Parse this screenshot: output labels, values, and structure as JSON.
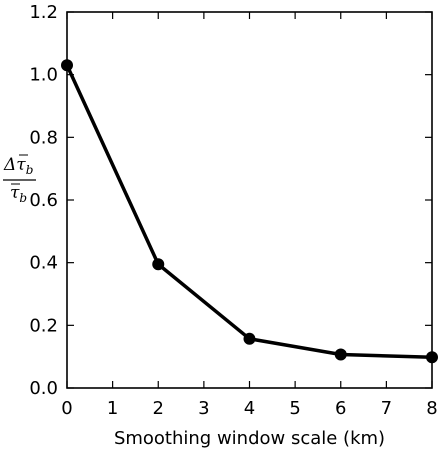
{
  "chart_data": {
    "type": "line",
    "title": "",
    "xlabel": "Smoothing window scale (km)",
    "ylabel": "Δτ̄_b / τ̄_b",
    "ylabel_parts": {
      "num_delta": "Δ",
      "num_tau": "τ",
      "num_sub": "b",
      "den_tau": "τ",
      "den_sub": "b"
    },
    "xlim": [
      0,
      8
    ],
    "ylim": [
      0.0,
      1.2
    ],
    "xticks": [
      0,
      1,
      2,
      3,
      4,
      5,
      6,
      7,
      8
    ],
    "xtick_labels": [
      "0",
      "1",
      "2",
      "3",
      "4",
      "5",
      "6",
      "7",
      "8"
    ],
    "yticks": [
      0.0,
      0.2,
      0.4,
      0.6,
      0.8,
      1.0,
      1.2
    ],
    "ytick_labels": [
      "0.0",
      "0.2",
      "0.4",
      "0.6",
      "0.8",
      "1.0",
      "1.2"
    ],
    "grid": false,
    "legend": "none",
    "series": [
      {
        "x": [
          0,
          2,
          4,
          6,
          8
        ],
        "y": [
          1.03,
          0.395,
          0.157,
          0.107,
          0.098
        ],
        "color": "#000000",
        "marker": "circle"
      }
    ]
  }
}
